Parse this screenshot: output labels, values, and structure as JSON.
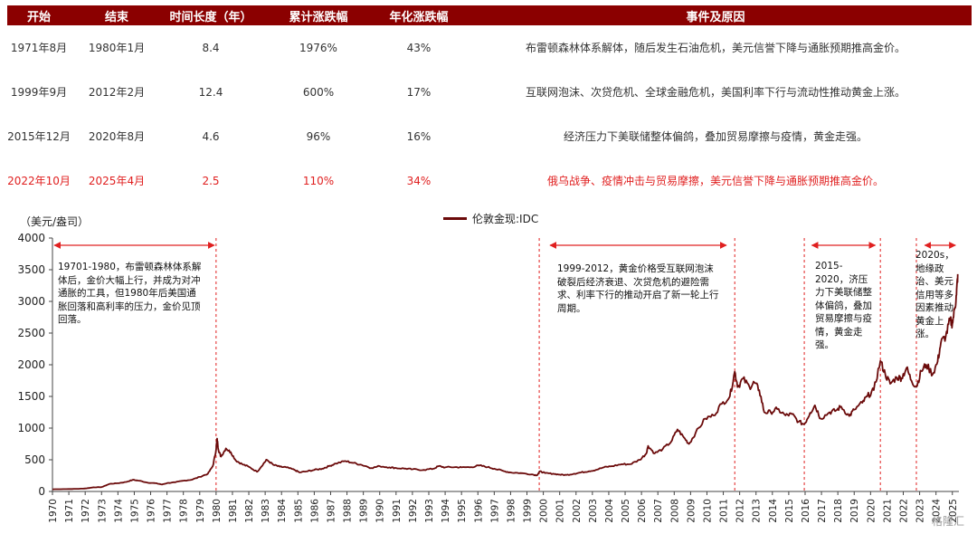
{
  "table": {
    "headers": [
      "开始",
      "结束",
      "时间长度（年）",
      "累计涨跌幅",
      "年化涨跌幅",
      "事件及原因"
    ],
    "rows": [
      {
        "start": "1971年8月",
        "end": "1980年1月",
        "years": "8.4",
        "cum": "1976%",
        "ann": "43%",
        "reason": "布雷顿森林体系解体，随后发生石油危机，美元信誉下降与通胀预期推高金价。"
      },
      {
        "start": "1999年9月",
        "end": "2012年2月",
        "years": "12.4",
        "cum": "600%",
        "ann": "17%",
        "reason": "互联网泡沫、次贷危机、全球金融危机，美国利率下行与流动性推动黄金上涨。"
      },
      {
        "start": "2015年12月",
        "end": "2020年8月",
        "years": "4.6",
        "cum": "96%",
        "ann": "16%",
        "reason": "经济压力下美联储整体偏鸽，叠加贸易摩擦与疫情，黄金走强。"
      },
      {
        "start": "2022年10月",
        "end": "2025年4月",
        "years": "2.5",
        "cum": "110%",
        "ann": "34%",
        "reason": "俄乌战争、疫情冲击与贸易摩擦，美元信誉下降与通胀预期推高金价。"
      }
    ]
  },
  "chart_data": {
    "type": "line",
    "ylabel": "（美元/盎司）",
    "ylim": [
      0,
      4000
    ],
    "yticks": [
      0,
      500,
      1000,
      1500,
      2000,
      2500,
      3000,
      3500,
      4000
    ],
    "xlim": [
      1970,
      2025.4
    ],
    "xticks": [
      "1970",
      "1971",
      "1972",
      "1973",
      "1974",
      "1975",
      "1976",
      "1977",
      "1978",
      "1979",
      "1980",
      "1981",
      "1982",
      "1983",
      "1984",
      "1985",
      "1986",
      "1987",
      "1988",
      "1989",
      "1990",
      "1991",
      "1992",
      "1993",
      "1994",
      "1995",
      "1996",
      "1997",
      "1998",
      "1999",
      "2000",
      "2001",
      "2002",
      "2003",
      "2004",
      "2005",
      "2006",
      "2007",
      "2008",
      "2009",
      "2010",
      "2011",
      "2012",
      "2013",
      "2014",
      "2015",
      "2016",
      "2017",
      "2018",
      "2019",
      "2020",
      "2021",
      "2022",
      "2023",
      "2024",
      "2025"
    ],
    "series": [
      {
        "name": "伦敦金现:IDC",
        "color": "#6b0a0a",
        "points": [
          [
            1970.0,
            35
          ],
          [
            1971.0,
            38
          ],
          [
            1971.6,
            42
          ],
          [
            1972.0,
            47
          ],
          [
            1972.5,
            65
          ],
          [
            1973.0,
            68
          ],
          [
            1973.5,
            120
          ],
          [
            1974.0,
            130
          ],
          [
            1974.5,
            150
          ],
          [
            1974.9,
            183
          ],
          [
            1975.3,
            170
          ],
          [
            1975.8,
            140
          ],
          [
            1976.3,
            130
          ],
          [
            1976.7,
            110
          ],
          [
            1977.0,
            132
          ],
          [
            1977.5,
            145
          ],
          [
            1978.0,
            170
          ],
          [
            1978.5,
            185
          ],
          [
            1979.0,
            230
          ],
          [
            1979.5,
            280
          ],
          [
            1979.8,
            400
          ],
          [
            1980.0,
            660
          ],
          [
            1980.06,
            835
          ],
          [
            1980.15,
            650
          ],
          [
            1980.3,
            550
          ],
          [
            1980.6,
            680
          ],
          [
            1980.9,
            620
          ],
          [
            1981.2,
            490
          ],
          [
            1981.6,
            430
          ],
          [
            1982.0,
            390
          ],
          [
            1982.5,
            310
          ],
          [
            1982.9,
            440
          ],
          [
            1983.1,
            500
          ],
          [
            1983.5,
            420
          ],
          [
            1983.9,
            390
          ],
          [
            1984.3,
            380
          ],
          [
            1984.8,
            340
          ],
          [
            1985.1,
            300
          ],
          [
            1985.6,
            320
          ],
          [
            1986.0,
            340
          ],
          [
            1986.5,
            360
          ],
          [
            1986.9,
            400
          ],
          [
            1987.3,
            440
          ],
          [
            1987.9,
            480
          ],
          [
            1988.4,
            450
          ],
          [
            1988.9,
            420
          ],
          [
            1989.5,
            370
          ],
          [
            1990.0,
            400
          ],
          [
            1990.6,
            380
          ],
          [
            1991.0,
            370
          ],
          [
            1991.6,
            360
          ],
          [
            1992.0,
            350
          ],
          [
            1992.7,
            340
          ],
          [
            1993.3,
            360
          ],
          [
            1993.6,
            400
          ],
          [
            1994.0,
            380
          ],
          [
            1994.6,
            385
          ],
          [
            1995.0,
            380
          ],
          [
            1995.6,
            385
          ],
          [
            1996.1,
            410
          ],
          [
            1996.6,
            385
          ],
          [
            1997.0,
            360
          ],
          [
            1997.6,
            320
          ],
          [
            1998.0,
            300
          ],
          [
            1998.6,
            290
          ],
          [
            1999.3,
            270
          ],
          [
            1999.6,
            255
          ],
          [
            1999.8,
            320
          ],
          [
            2000.1,
            290
          ],
          [
            2000.6,
            280
          ],
          [
            2001.0,
            265
          ],
          [
            2001.4,
            260
          ],
          [
            2001.9,
            280
          ],
          [
            2002.3,
            300
          ],
          [
            2002.8,
            320
          ],
          [
            2003.2,
            340
          ],
          [
            2003.7,
            380
          ],
          [
            2004.2,
            400
          ],
          [
            2004.8,
            430
          ],
          [
            2005.3,
            430
          ],
          [
            2005.9,
            500
          ],
          [
            2006.3,
            600
          ],
          [
            2006.4,
            720
          ],
          [
            2006.8,
            600
          ],
          [
            2007.3,
            670
          ],
          [
            2007.8,
            780
          ],
          [
            2008.2,
            980
          ],
          [
            2008.6,
            850
          ],
          [
            2008.9,
            750
          ],
          [
            2009.3,
            920
          ],
          [
            2009.9,
            1150
          ],
          [
            2010.4,
            1200
          ],
          [
            2010.9,
            1380
          ],
          [
            2011.4,
            1500
          ],
          [
            2011.7,
            1890
          ],
          [
            2011.9,
            1650
          ],
          [
            2012.2,
            1780
          ],
          [
            2012.6,
            1650
          ],
          [
            2012.9,
            1720
          ],
          [
            2013.2,
            1600
          ],
          [
            2013.5,
            1250
          ],
          [
            2013.9,
            1250
          ],
          [
            2014.3,
            1300
          ],
          [
            2014.8,
            1200
          ],
          [
            2015.2,
            1220
          ],
          [
            2015.6,
            1100
          ],
          [
            2015.95,
            1060
          ],
          [
            2016.3,
            1240
          ],
          [
            2016.6,
            1360
          ],
          [
            2016.95,
            1150
          ],
          [
            2017.5,
            1250
          ],
          [
            2017.9,
            1280
          ],
          [
            2018.2,
            1340
          ],
          [
            2018.7,
            1190
          ],
          [
            2019.0,
            1290
          ],
          [
            2019.5,
            1400
          ],
          [
            2019.8,
            1500
          ],
          [
            2020.2,
            1600
          ],
          [
            2020.6,
            2060
          ],
          [
            2020.9,
            1850
          ],
          [
            2021.2,
            1700
          ],
          [
            2021.6,
            1800
          ],
          [
            2021.9,
            1790
          ],
          [
            2022.2,
            1950
          ],
          [
            2022.5,
            1750
          ],
          [
            2022.8,
            1650
          ],
          [
            2023.1,
            1900
          ],
          [
            2023.4,
            2000
          ],
          [
            2023.8,
            1850
          ],
          [
            2024.1,
            2050
          ],
          [
            2024.3,
            2350
          ],
          [
            2024.6,
            2450
          ],
          [
            2024.85,
            2700
          ],
          [
            2025.0,
            2650
          ],
          [
            2025.15,
            2900
          ],
          [
            2025.25,
            3100
          ],
          [
            2025.33,
            3430
          ]
        ]
      }
    ],
    "dividers": [
      1980.0,
      1999.75,
      2011.7,
      2015.95,
      2020.6,
      2022.8
    ],
    "arrows": [
      [
        1970.0,
        1980.0
      ],
      [
        2000.3,
        2011.3
      ],
      [
        2016.3,
        2020.4
      ],
      [
        2023.2,
        2025.3
      ]
    ],
    "annotations": [
      "19701-1980，布雷顿森林体系解体后，金价大幅上行，并成为对冲通胀的工具，但1980年后美国通胀回落和高利率的压力，金价见顶回落。",
      "1999-2012，黄金价格受互联网泡沫破裂后经济衰退、次贷危机的避险需求、利率下行的推动开启了新一轮上行周期。",
      "2015-2020，济压力下美联储整体偏鸽，叠加贸易摩擦与疫情，黄金走强。",
      "2020s，地缘政治、美元信用等多因素推动黄金上涨。"
    ]
  },
  "watermark": "格隆汇"
}
